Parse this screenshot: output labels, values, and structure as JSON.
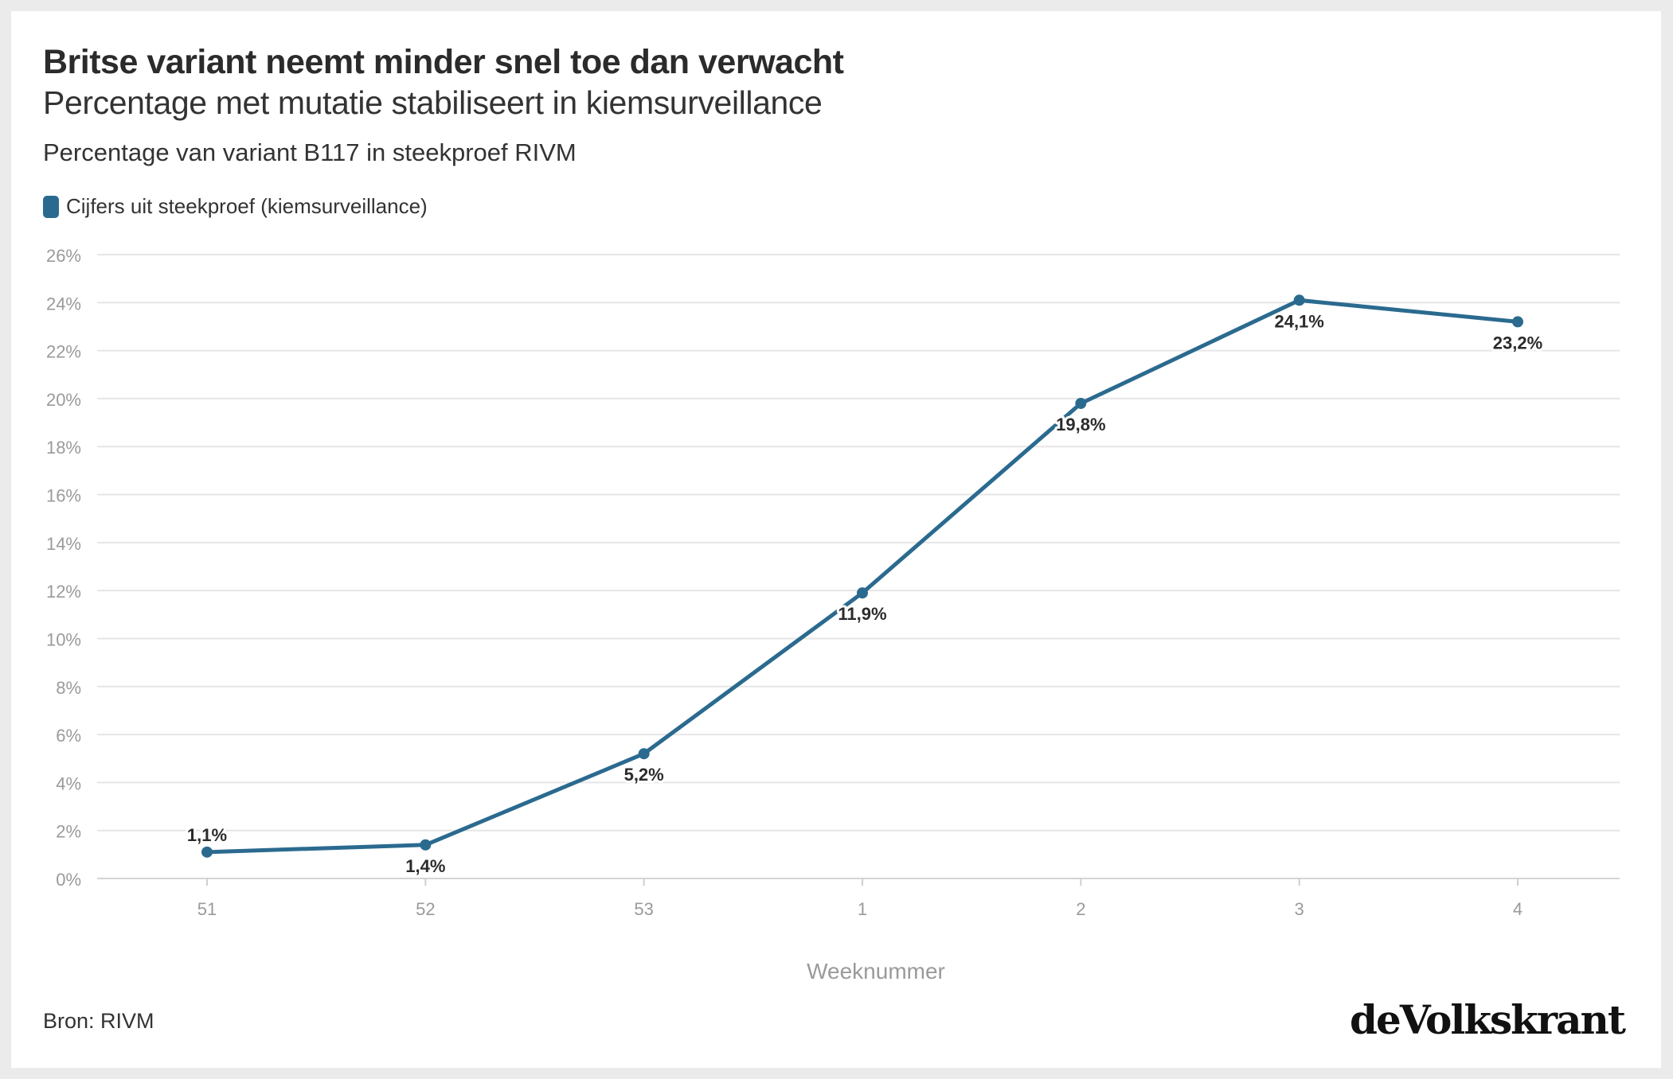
{
  "chart_data": {
    "type": "line",
    "title": "Britse variant neemt minder snel toe dan verwacht",
    "subtitle": "Percentage met mutatie stabiliseert in kiemsurveillance",
    "description": "Percentage van variant B117 in steekproef RIVM",
    "categories": [
      "51",
      "52",
      "53",
      "1",
      "2",
      "3",
      "4"
    ],
    "series": [
      {
        "name": "Cijfers uit steekproef (kiemsurveillance)",
        "values": [
          1.1,
          1.4,
          5.2,
          11.9,
          19.8,
          24.1,
          23.2
        ],
        "labels": [
          "1,1%",
          "1,4%",
          "5,2%",
          "11,9%",
          "19,8%",
          "24,1%",
          "23,2%"
        ],
        "color": "#2b6a8f"
      }
    ],
    "xlabel": "Weeknummer",
    "ylabel": "",
    "ylim": [
      0,
      26
    ],
    "yticks": [
      "0%",
      "2%",
      "4%",
      "6%",
      "8%",
      "10%",
      "12%",
      "14%",
      "16%",
      "18%",
      "20%",
      "22%",
      "24%",
      "26%"
    ],
    "grid": true,
    "legend_position": "top-left"
  },
  "source": "Bron: RIVM",
  "logo": "deVolkskrant",
  "colors": {
    "line": "#2b6a8f",
    "grid": "#e6e6e6",
    "tick": "#9a9a9a",
    "label": "#2b2b2b"
  }
}
